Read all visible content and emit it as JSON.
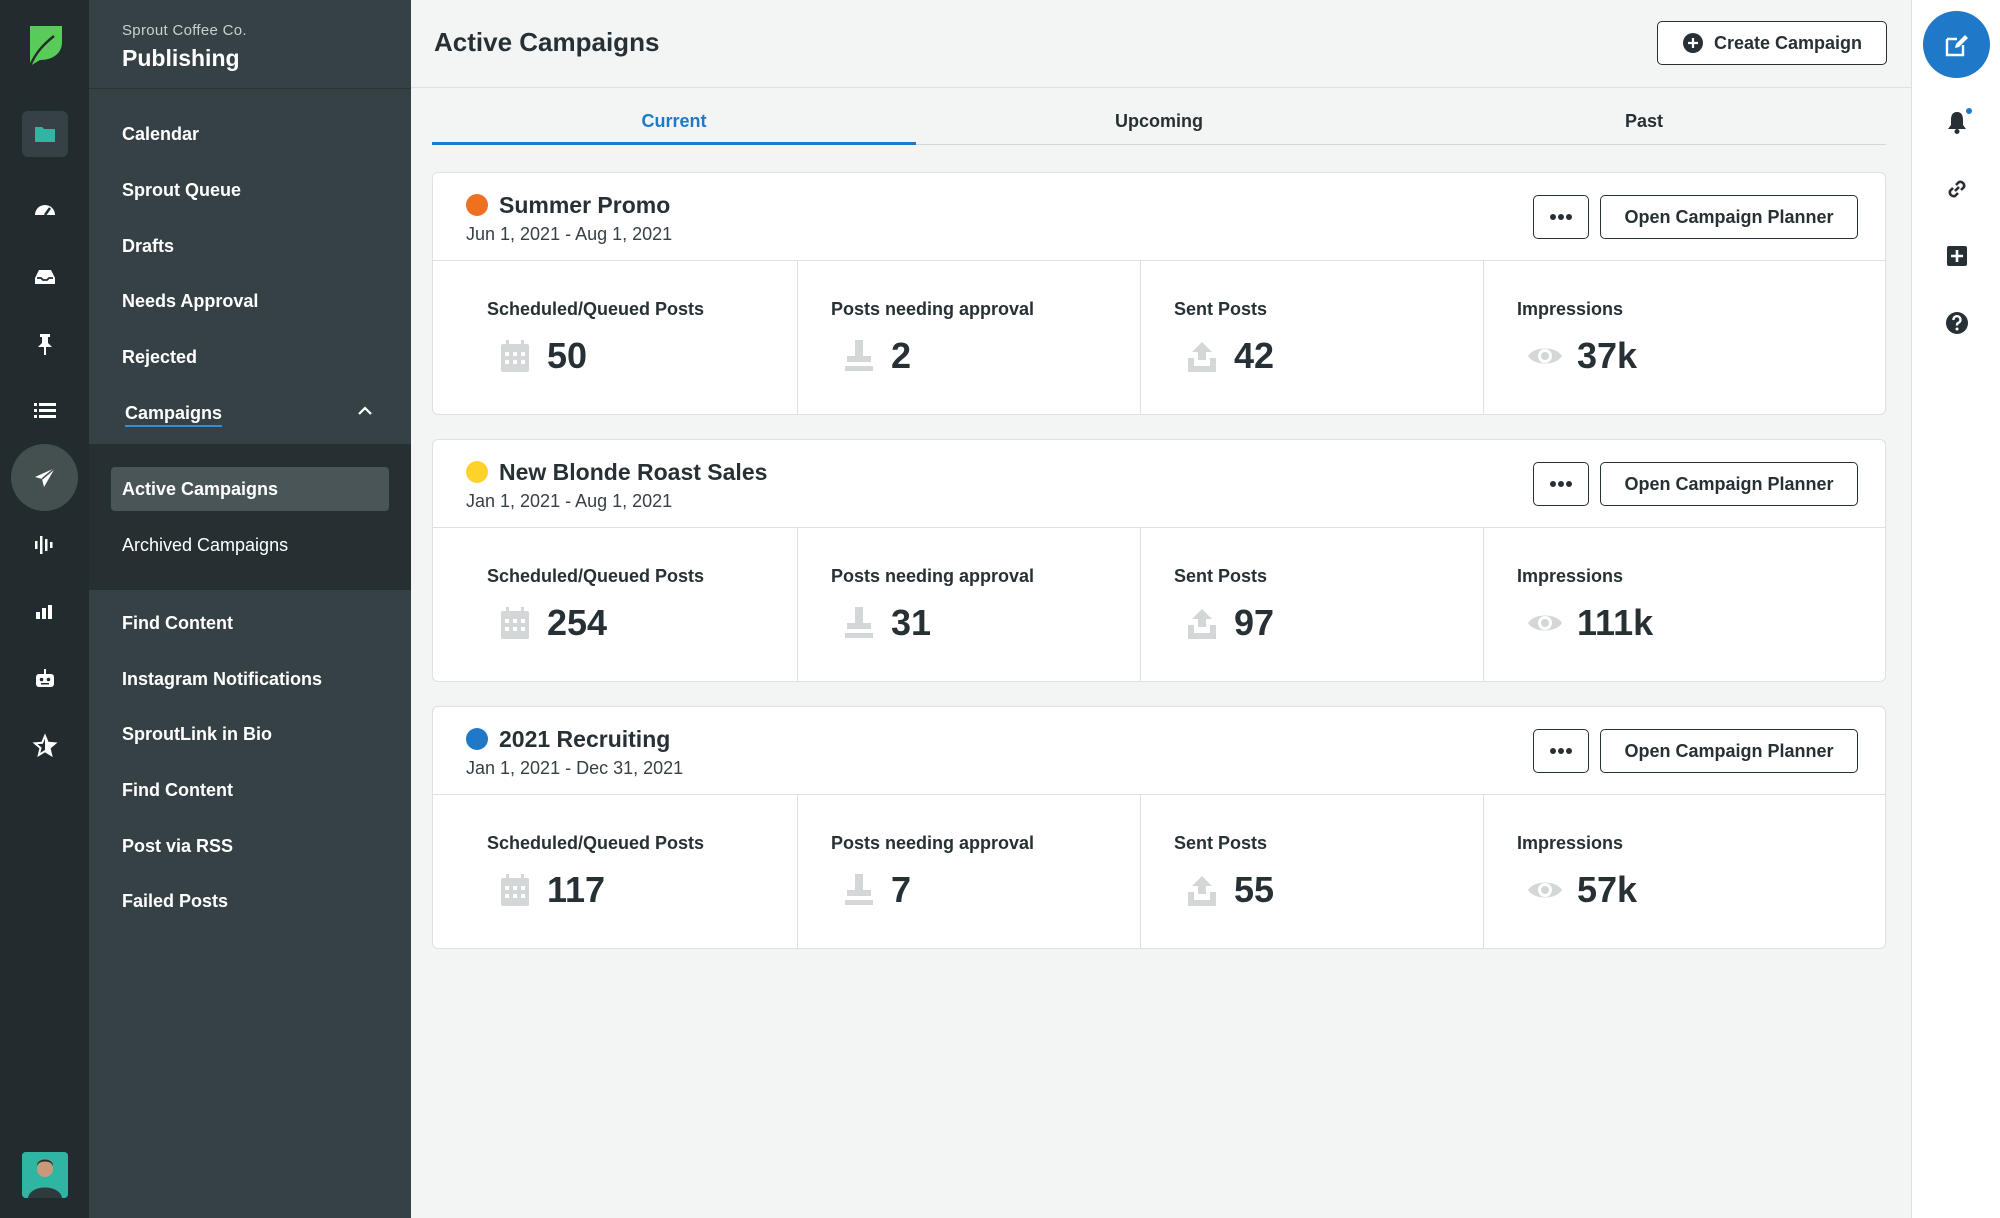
{
  "brand": {
    "org": "Sprout Coffee Co.",
    "section": "Publishing",
    "accent": "#1f78c8",
    "leaf_color": "#59cb59"
  },
  "sidebar": {
    "items": [
      {
        "label": "Calendar"
      },
      {
        "label": "Sprout Queue"
      },
      {
        "label": "Drafts"
      },
      {
        "label": "Needs Approval"
      },
      {
        "label": "Rejected"
      },
      {
        "label": "Campaigns"
      }
    ],
    "campaign_sub": [
      {
        "label": "Active Campaigns"
      },
      {
        "label": "Archived Campaigns"
      }
    ],
    "more_items": [
      {
        "label": "Find Content"
      },
      {
        "label": "Instagram Notifications"
      },
      {
        "label": "SproutLink in Bio"
      },
      {
        "label": "Find Content"
      },
      {
        "label": "Post via RSS"
      },
      {
        "label": "Failed Posts"
      }
    ]
  },
  "rail_icons": [
    "folder-icon",
    "gauge-icon",
    "inbox-icon",
    "pin-icon",
    "list-icon",
    "paper-plane-icon",
    "soundwave-icon",
    "bar-chart-icon",
    "bot-icon",
    "star-icon"
  ],
  "header": {
    "title": "Active Campaigns",
    "create_label": "Create Campaign"
  },
  "tabs": [
    {
      "label": "Current"
    },
    {
      "label": "Upcoming"
    },
    {
      "label": "Past"
    }
  ],
  "stat_labels": {
    "scheduled": "Scheduled/Queued Posts",
    "approval": "Posts needing approval",
    "sent": "Sent Posts",
    "impressions": "Impressions"
  },
  "planner_label": "Open Campaign Planner",
  "campaigns": [
    {
      "name": "Summer Promo",
      "dates": "Jun 1, 2021 - Aug 1, 2021",
      "color": "#f07021",
      "scheduled": "50",
      "approval": "2",
      "sent": "42",
      "impressions": "37k"
    },
    {
      "name": "New Blonde Roast Sales",
      "dates": "Jan 1, 2021 - Aug 1, 2021",
      "color": "#fcd22b",
      "scheduled": "254",
      "approval": "31",
      "sent": "97",
      "impressions": "111k"
    },
    {
      "name": "2021 Recruiting",
      "dates": "Jan 1, 2021 - Dec 31, 2021",
      "color": "#2079c7",
      "scheduled": "117",
      "approval": "7",
      "sent": "55",
      "impressions": "57k"
    }
  ]
}
